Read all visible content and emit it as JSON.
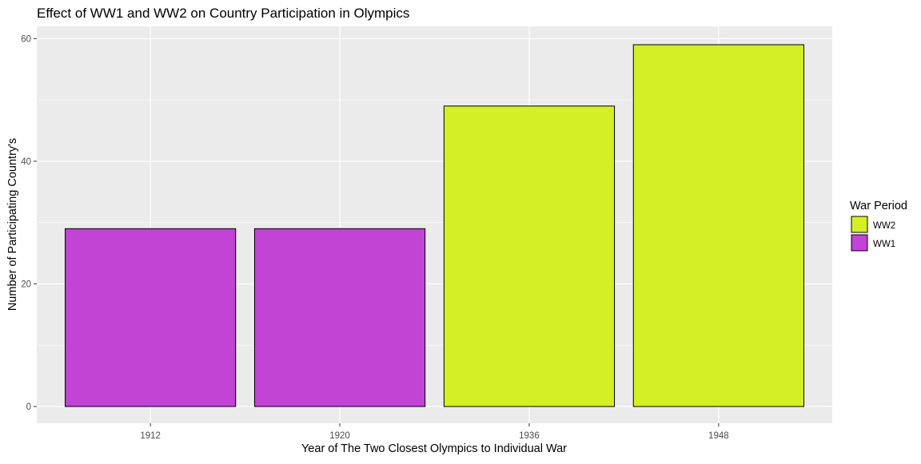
{
  "chart_data": {
    "type": "bar",
    "title": "Effect of WW1 and WW2 on Country Participation in Olympics",
    "xlabel": "Year of The Two Closest Olympics to Individual War",
    "ylabel": "Number of Participating Country's",
    "categories": [
      "1912",
      "1920",
      "1936",
      "1948"
    ],
    "values": [
      29,
      29,
      49,
      59
    ],
    "groups": [
      "WW1",
      "WW1",
      "WW2",
      "WW2"
    ],
    "ylim": [
      0,
      62
    ],
    "yticks": [
      0,
      20,
      40,
      60
    ],
    "grid": true,
    "legend": {
      "title": "War Period",
      "placement": "right",
      "entries": [
        {
          "label": "WW2",
          "color": "#d4ef26"
        },
        {
          "label": "WW1",
          "color": "#c244d4"
        }
      ]
    },
    "colors": {
      "WW1": "#c244d4",
      "WW2": "#d4ef26",
      "panel_background": "#ebebeb",
      "grid": "#ffffff",
      "bar_outline": "#000000"
    }
  }
}
